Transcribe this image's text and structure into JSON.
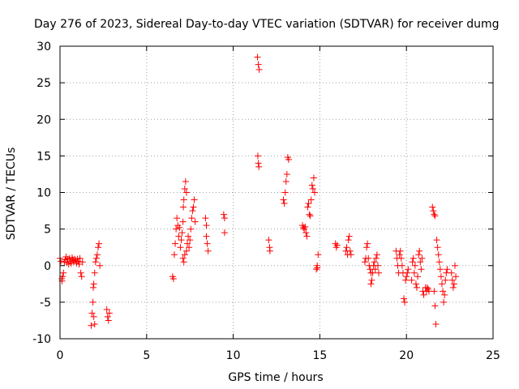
{
  "chart_data": {
    "type": "scatter",
    "title": "Day 276 of 2023, Sidereal Day-to-day VTEC variation (SDTVAR) for receiver dumg",
    "xlabel": "GPS time / hours",
    "ylabel": "SDTVAR / TECUs",
    "xlim": [
      0,
      25
    ],
    "ylim": [
      -10,
      30
    ],
    "xticks": [
      0,
      5,
      10,
      15,
      20,
      25
    ],
    "yticks": [
      -10,
      -5,
      0,
      5,
      10,
      15,
      20,
      25,
      30
    ],
    "grid": true,
    "marker": "+",
    "color": "#ff0000",
    "series": [
      {
        "name": "SDTVAR",
        "points": [
          [
            0.0,
            1.0
          ],
          [
            0.05,
            0.6
          ],
          [
            0.1,
            -1.8
          ],
          [
            0.12,
            -2.1
          ],
          [
            0.15,
            -1.5
          ],
          [
            0.2,
            -1.0
          ],
          [
            0.25,
            0.5
          ],
          [
            0.3,
            0.8
          ],
          [
            0.35,
            1.2
          ],
          [
            0.4,
            0.4
          ],
          [
            0.45,
            0.9
          ],
          [
            0.5,
            0.2
          ],
          [
            0.55,
            1.0
          ],
          [
            0.6,
            0.6
          ],
          [
            0.65,
            0.3
          ],
          [
            0.7,
            1.1
          ],
          [
            0.75,
            0.8
          ],
          [
            0.8,
            0.5
          ],
          [
            0.85,
            0.9
          ],
          [
            0.9,
            0.7
          ],
          [
            0.95,
            0.3
          ],
          [
            1.0,
            0.9
          ],
          [
            1.05,
            0.6
          ],
          [
            1.1,
            0.2
          ],
          [
            1.15,
            1.0
          ],
          [
            1.2,
            -1.0
          ],
          [
            1.25,
            -1.5
          ],
          [
            1.3,
            0.5
          ],
          [
            1.8,
            -8.2
          ],
          [
            1.85,
            -6.5
          ],
          [
            1.9,
            -5.0
          ],
          [
            1.92,
            -3.0
          ],
          [
            1.95,
            -2.5
          ],
          [
            2.0,
            -1.0
          ],
          [
            2.05,
            0.5
          ],
          [
            2.1,
            1.0
          ],
          [
            2.15,
            1.5
          ],
          [
            2.2,
            2.5
          ],
          [
            2.25,
            3.0
          ],
          [
            2.3,
            0.0
          ],
          [
            2.0,
            -8.0
          ],
          [
            1.95,
            -7.0
          ],
          [
            2.7,
            -6.0
          ],
          [
            2.75,
            -7.0
          ],
          [
            2.8,
            -7.5
          ],
          [
            2.85,
            -6.5
          ],
          [
            6.5,
            -1.5
          ],
          [
            6.55,
            -1.8
          ],
          [
            6.6,
            1.5
          ],
          [
            6.65,
            3.0
          ],
          [
            6.7,
            5.0
          ],
          [
            6.75,
            6.5
          ],
          [
            6.8,
            5.5
          ],
          [
            6.85,
            4.0
          ],
          [
            6.9,
            5.2
          ],
          [
            6.95,
            2.5
          ],
          [
            7.0,
            3.5
          ],
          [
            7.05,
            4.5
          ],
          [
            7.1,
            6.0
          ],
          [
            7.12,
            8.0
          ],
          [
            7.15,
            9.0
          ],
          [
            7.2,
            10.5
          ],
          [
            7.25,
            11.5
          ],
          [
            7.3,
            10.0
          ],
          [
            7.3,
            2.0
          ],
          [
            7.35,
            3.0
          ],
          [
            7.4,
            4.0
          ],
          [
            7.45,
            2.5
          ],
          [
            7.5,
            3.5
          ],
          [
            7.55,
            5.0
          ],
          [
            7.6,
            6.5
          ],
          [
            7.65,
            7.5
          ],
          [
            7.7,
            8.0
          ],
          [
            7.75,
            9.0
          ],
          [
            7.8,
            6.0
          ],
          [
            7.1,
            1.0
          ],
          [
            7.15,
            0.5
          ],
          [
            7.2,
            1.5
          ],
          [
            8.4,
            6.5
          ],
          [
            8.45,
            4.0
          ],
          [
            8.5,
            3.0
          ],
          [
            8.55,
            2.0
          ],
          [
            8.45,
            5.5
          ],
          [
            9.45,
            7.0
          ],
          [
            9.5,
            6.5
          ],
          [
            9.5,
            4.5
          ],
          [
            11.4,
            28.5
          ],
          [
            11.45,
            27.5
          ],
          [
            11.5,
            26.8
          ],
          [
            11.42,
            15.0
          ],
          [
            11.45,
            14.0
          ],
          [
            11.48,
            13.5
          ],
          [
            12.05,
            3.5
          ],
          [
            12.1,
            2.5
          ],
          [
            12.12,
            2.0
          ],
          [
            12.9,
            9.0
          ],
          [
            12.95,
            8.5
          ],
          [
            13.0,
            10.0
          ],
          [
            13.05,
            11.5
          ],
          [
            13.1,
            12.5
          ],
          [
            13.15,
            14.8
          ],
          [
            13.2,
            14.5
          ],
          [
            14.0,
            5.5
          ],
          [
            14.05,
            5.2
          ],
          [
            14.1,
            5.0
          ],
          [
            14.15,
            5.3
          ],
          [
            14.2,
            4.5
          ],
          [
            14.25,
            4.0
          ],
          [
            14.3,
            8.0
          ],
          [
            14.35,
            8.5
          ],
          [
            14.4,
            7.0
          ],
          [
            14.45,
            6.8
          ],
          [
            14.5,
            9.0
          ],
          [
            14.55,
            11.0
          ],
          [
            14.6,
            10.5
          ],
          [
            14.65,
            12.0
          ],
          [
            14.7,
            10.0
          ],
          [
            14.8,
            -0.5
          ],
          [
            14.85,
            0.0
          ],
          [
            14.9,
            1.5
          ],
          [
            14.85,
            -0.3
          ],
          [
            15.9,
            3.0
          ],
          [
            15.95,
            2.5
          ],
          [
            16.0,
            2.8
          ],
          [
            16.5,
            2.0
          ],
          [
            16.55,
            2.5
          ],
          [
            16.6,
            1.5
          ],
          [
            16.65,
            3.5
          ],
          [
            16.7,
            4.0
          ],
          [
            16.75,
            2.0
          ],
          [
            16.8,
            1.5
          ],
          [
            17.6,
            0.5
          ],
          [
            17.65,
            1.0
          ],
          [
            17.7,
            2.5
          ],
          [
            17.75,
            3.0
          ],
          [
            17.8,
            1.0
          ],
          [
            17.85,
            0.0
          ],
          [
            17.9,
            -0.5
          ],
          [
            17.95,
            -1.0
          ],
          [
            18.0,
            -2.0
          ],
          [
            18.05,
            -1.0
          ],
          [
            18.1,
            0.0
          ],
          [
            18.15,
            0.5
          ],
          [
            18.2,
            -0.5
          ],
          [
            18.25,
            1.0
          ],
          [
            18.3,
            1.5
          ],
          [
            18.35,
            0.0
          ],
          [
            18.4,
            -1.0
          ],
          [
            17.95,
            -2.5
          ],
          [
            19.4,
            2.0
          ],
          [
            19.45,
            1.0
          ],
          [
            19.5,
            0.0
          ],
          [
            19.55,
            -1.0
          ],
          [
            19.6,
            1.5
          ],
          [
            19.65,
            2.0
          ],
          [
            19.7,
            1.0
          ],
          [
            19.75,
            0.0
          ],
          [
            19.8,
            -1.0
          ],
          [
            19.85,
            -4.5
          ],
          [
            19.9,
            -5.0
          ],
          [
            19.95,
            -2.0
          ],
          [
            20.0,
            -1.5
          ],
          [
            20.05,
            -1.0
          ],
          [
            20.1,
            -0.5
          ],
          [
            20.3,
            -2.0
          ],
          [
            20.35,
            0.5
          ],
          [
            20.4,
            1.0
          ],
          [
            20.45,
            -1.0
          ],
          [
            20.5,
            0.0
          ],
          [
            20.55,
            -2.5
          ],
          [
            20.6,
            -3.0
          ],
          [
            20.65,
            -1.5
          ],
          [
            20.7,
            1.5
          ],
          [
            20.75,
            2.0
          ],
          [
            20.8,
            0.5
          ],
          [
            20.85,
            -0.5
          ],
          [
            20.9,
            1.0
          ],
          [
            20.95,
            -3.5
          ],
          [
            21.0,
            -4.0
          ],
          [
            21.1,
            -3.0
          ],
          [
            21.15,
            -3.5
          ],
          [
            21.2,
            -3.0
          ],
          [
            21.25,
            -3.2
          ],
          [
            21.3,
            -3.5
          ],
          [
            21.5,
            8.0
          ],
          [
            21.55,
            7.5
          ],
          [
            21.6,
            7.0
          ],
          [
            21.65,
            6.8
          ],
          [
            21.6,
            -3.5
          ],
          [
            21.65,
            -5.5
          ],
          [
            21.7,
            -8.0
          ],
          [
            21.75,
            3.5
          ],
          [
            21.8,
            2.5
          ],
          [
            21.85,
            1.5
          ],
          [
            21.9,
            0.5
          ],
          [
            21.95,
            -0.5
          ],
          [
            22.0,
            -1.5
          ],
          [
            22.05,
            -2.5
          ],
          [
            22.1,
            -3.5
          ],
          [
            22.15,
            -5.0
          ],
          [
            22.2,
            -4.0
          ],
          [
            22.25,
            -2.0
          ],
          [
            22.3,
            -1.0
          ],
          [
            22.35,
            -0.5
          ],
          [
            22.6,
            -1.0
          ],
          [
            22.65,
            -2.0
          ],
          [
            22.7,
            -3.0
          ],
          [
            22.75,
            -2.5
          ],
          [
            22.8,
            0.0
          ],
          [
            22.85,
            -1.5
          ]
        ]
      }
    ]
  }
}
